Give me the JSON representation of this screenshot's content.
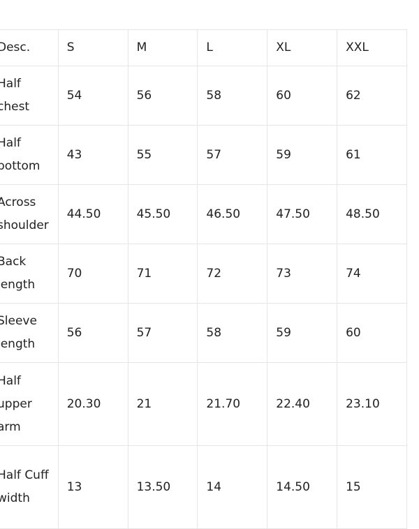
{
  "size_chart": {
    "headers": [
      "Desc.",
      "S",
      "M",
      "L",
      "XL",
      "XXL"
    ],
    "rows": [
      {
        "desc": "Half chest",
        "values": [
          "54",
          "56",
          "58",
          "60",
          "62"
        ]
      },
      {
        "desc": "Half bottom",
        "values": [
          "43",
          "55",
          "57",
          "59",
          "61"
        ]
      },
      {
        "desc": "Across shoulder",
        "values": [
          "44.50",
          "45.50",
          "46.50",
          "47.50",
          "48.50"
        ]
      },
      {
        "desc": "Back length",
        "values": [
          "70",
          "71",
          "72",
          "73",
          "74"
        ]
      },
      {
        "desc": "Sleeve length",
        "values": [
          "56",
          "57",
          "58",
          "59",
          "60"
        ]
      },
      {
        "desc": "Half upper arm",
        "values": [
          "20.30",
          "21",
          "21.70",
          "22.40",
          "23.10"
        ]
      },
      {
        "desc": "Half Cuff width",
        "values": [
          "13",
          "13.50",
          "14",
          "14.50",
          "15"
        ]
      }
    ]
  }
}
